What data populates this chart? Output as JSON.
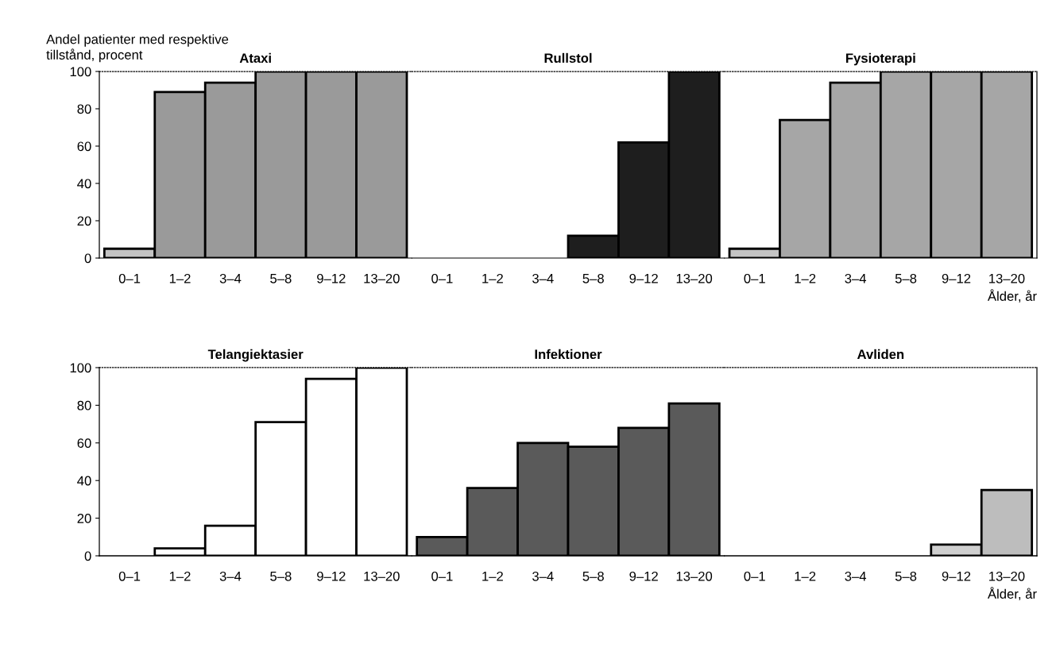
{
  "chart_data": [
    {
      "type": "bar",
      "title": "Ataxi",
      "ylabel": "Andel patienter med respektive\ntillstånd, procent",
      "categories": [
        "0–1",
        "1–2",
        "3–4",
        "5–8",
        "9–12",
        "13–20"
      ],
      "values": [
        5,
        89,
        94,
        100,
        100,
        100
      ],
      "colors": [
        "#c4c4c4",
        "#9a9a9a",
        "#9a9a9a",
        "#9a9a9a",
        "#9a9a9a",
        "#9a9a9a"
      ],
      "ylim": [
        0,
        100
      ],
      "yticks": [
        0,
        20,
        40,
        60,
        80,
        100
      ]
    },
    {
      "type": "bar",
      "title": "Rullstol",
      "categories": [
        "0–1",
        "1–2",
        "3–4",
        "5–8",
        "9–12",
        "13–20"
      ],
      "values": [
        0,
        0,
        0,
        12,
        62,
        100
      ],
      "colors": [
        "#1e1e1e",
        "#1e1e1e",
        "#1e1e1e",
        "#1e1e1e",
        "#1e1e1e",
        "#1e1e1e"
      ],
      "ylim": [
        0,
        100
      ],
      "tick_labels": "x"
    },
    {
      "type": "bar",
      "title": "Fysioterapi",
      "xlabel": "Ålder, år",
      "categories": [
        "0–1",
        "1–2",
        "3–4",
        "5–8",
        "9–12",
        "13–20"
      ],
      "values": [
        5,
        74,
        94,
        100,
        100,
        100
      ],
      "colors": [
        "#c4c4c4",
        "#a6a6a6",
        "#a6a6a6",
        "#a6a6a6",
        "#a6a6a6",
        "#a6a6a6"
      ],
      "ylim": [
        0,
        100
      ],
      "tick_labels": "x"
    },
    {
      "type": "bar",
      "title": "Telangiektasier",
      "categories": [
        "0–1",
        "1–2",
        "3–4",
        "5–8",
        "9–12",
        "13–20"
      ],
      "values": [
        0,
        4,
        16,
        71,
        94,
        100
      ],
      "colors": [
        "#ffffff",
        "#ffffff",
        "#ffffff",
        "#ffffff",
        "#ffffff",
        "#ffffff"
      ],
      "ylim": [
        0,
        100
      ],
      "yticks": [
        0,
        20,
        40,
        60,
        80,
        100
      ]
    },
    {
      "type": "bar",
      "title": "Infektioner",
      "categories": [
        "0–1",
        "1–2",
        "3–4",
        "5–8",
        "9–12",
        "13–20"
      ],
      "values": [
        10,
        36,
        60,
        58,
        68,
        81
      ],
      "colors": [
        "#5a5a5a",
        "#5a5a5a",
        "#5a5a5a",
        "#5a5a5a",
        "#5a5a5a",
        "#5a5a5a"
      ],
      "ylim": [
        0,
        100
      ],
      "tick_labels": "x"
    },
    {
      "type": "bar",
      "title": "Avliden",
      "xlabel": "Ålder, år",
      "categories": [
        "0–1",
        "1–2",
        "3–4",
        "5–8",
        "9–12",
        "13–20"
      ],
      "values": [
        0,
        0,
        0,
        0,
        6,
        35
      ],
      "colors": [
        "#cfcfcf",
        "#cfcfcf",
        "#cfcfcf",
        "#cfcfcf",
        "#cfcfcf",
        "#bdbdbd"
      ],
      "ylim": [
        0,
        100
      ],
      "tick_labels": "x"
    }
  ]
}
